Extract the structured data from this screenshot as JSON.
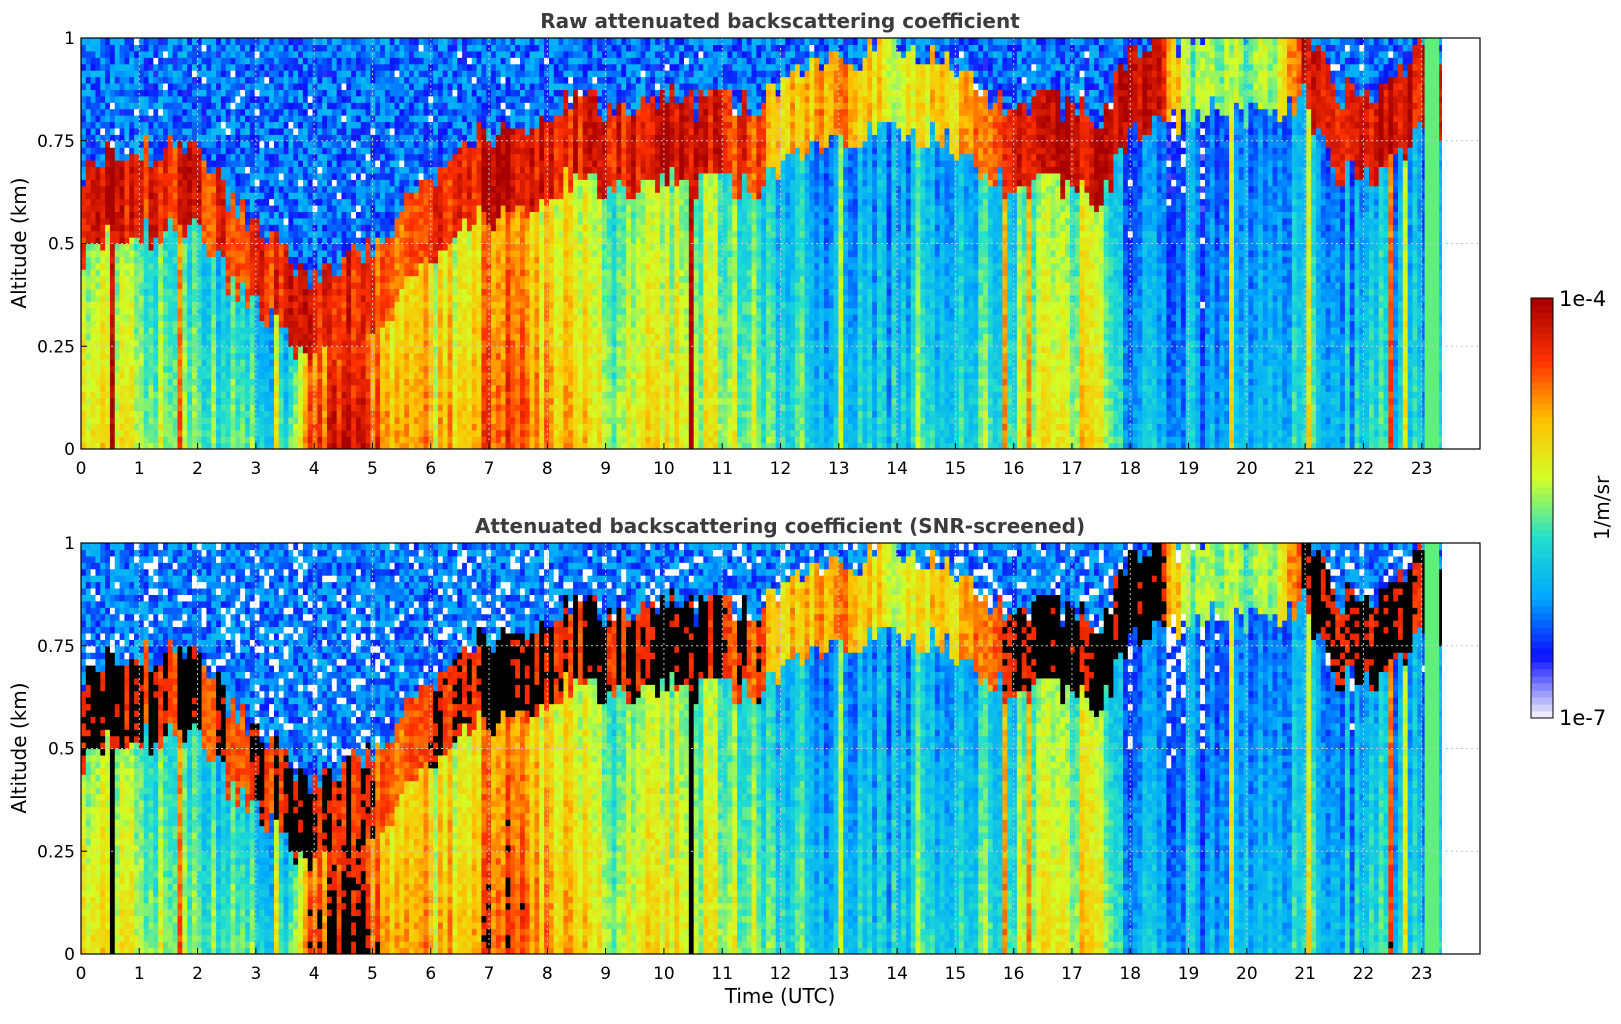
{
  "chart_data": [
    {
      "type": "heatmap",
      "title": "Raw attenuated backscattering coefficient",
      "xlabel": "",
      "ylabel": "Altitude (km)",
      "xlim": [
        0,
        24
      ],
      "ylim": [
        0,
        1
      ],
      "x_ticks": [
        0,
        1,
        2,
        3,
        4,
        5,
        6,
        7,
        8,
        9,
        10,
        11,
        12,
        13,
        14,
        15,
        16,
        17,
        18,
        19,
        20,
        21,
        22,
        23
      ],
      "y_ticks": [
        {
          "v": 0,
          "label": "0"
        },
        {
          "v": 0.25,
          "label": "0.25"
        },
        {
          "v": 0.5,
          "label": "0.5"
        },
        {
          "v": 0.75,
          "label": "0.75"
        },
        {
          "v": 1,
          "label": "1"
        }
      ],
      "grid": true,
      "data_end_hour": 23.3,
      "screened": false,
      "profile_hours": [
        0,
        0.5,
        1,
        1.5,
        2,
        2.5,
        3,
        3.5,
        4,
        4.5,
        5,
        5.5,
        6,
        6.5,
        7,
        7.5,
        8,
        8.5,
        9,
        9.5,
        10,
        10.5,
        11,
        11.5,
        12,
        12.5,
        13,
        13.5,
        14,
        14.5,
        15,
        15.5,
        16,
        16.5,
        17,
        17.5,
        18,
        18.5,
        19,
        19.5,
        20,
        20.5,
        21,
        21.5,
        22,
        22.5,
        23
      ],
      "layer_altitude_km": [
        0.55,
        0.6,
        0.6,
        0.62,
        0.62,
        0.5,
        0.42,
        0.35,
        0.3,
        0.32,
        0.38,
        0.45,
        0.55,
        0.6,
        0.65,
        0.65,
        0.7,
        0.75,
        0.7,
        0.72,
        0.75,
        0.72,
        0.72,
        0.72,
        0.75,
        0.8,
        0.82,
        0.85,
        0.85,
        0.85,
        0.82,
        0.75,
        0.7,
        0.72,
        0.72,
        0.7,
        0.85,
        0.87,
        0.88,
        0.9,
        0.9,
        0.9,
        0.95,
        0.75,
        0.75,
        0.78,
        0.85
      ],
      "layer_intensity": [
        0.95,
        0.95,
        0.9,
        0.9,
        0.9,
        0.85,
        0.85,
        0.9,
        0.9,
        0.9,
        0.85,
        0.8,
        0.85,
        0.85,
        0.95,
        0.95,
        0.9,
        0.9,
        0.9,
        0.9,
        0.95,
        0.95,
        0.9,
        0.85,
        0.7,
        0.7,
        0.8,
        0.7,
        0.6,
        0.65,
        0.7,
        0.8,
        0.9,
        0.95,
        0.95,
        0.95,
        0.95,
        0.95,
        0.5,
        0.5,
        0.5,
        0.5,
        0.95,
        0.95,
        0.95,
        0.95,
        0.95
      ],
      "near_surface_level": [
        0.55,
        0.5,
        0.45,
        0.45,
        0.4,
        0.35,
        0.35,
        0.3,
        0.75,
        0.8,
        0.75,
        0.6,
        0.55,
        0.6,
        0.7,
        0.7,
        0.6,
        0.55,
        0.45,
        0.45,
        0.55,
        0.5,
        0.45,
        0.4,
        0.35,
        0.3,
        0.25,
        0.25,
        0.25,
        0.25,
        0.3,
        0.35,
        0.4,
        0.45,
        0.45,
        0.5,
        0.2,
        0.2,
        0.2,
        0.2,
        0.2,
        0.2,
        0.3,
        0.25,
        0.25,
        0.25,
        0.25
      ],
      "colorscale": [
        "#ecebff",
        "#0a10ff",
        "#00a8ff",
        "#22e0cc",
        "#d2ff28",
        "#ffc000",
        "#ff3200",
        "#a80000"
      ]
    },
    {
      "type": "heatmap",
      "title": "Attenuated backscattering coefficient (SNR-screened)",
      "xlabel": "Time (UTC)",
      "ylabel": "Altitude (km)",
      "xlim": [
        0,
        24
      ],
      "ylim": [
        0,
        1
      ],
      "x_ticks": [
        0,
        1,
        2,
        3,
        4,
        5,
        6,
        7,
        8,
        9,
        10,
        11,
        12,
        13,
        14,
        15,
        16,
        17,
        18,
        19,
        20,
        21,
        22,
        23
      ],
      "y_ticks": [
        {
          "v": 0,
          "label": "0"
        },
        {
          "v": 0.25,
          "label": "0.25"
        },
        {
          "v": 0.5,
          "label": "0.5"
        },
        {
          "v": 0.75,
          "label": "0.75"
        },
        {
          "v": 1,
          "label": "1"
        }
      ],
      "grid": true,
      "data_end_hour": 23.3,
      "screened": true,
      "saturated_color": "#000000",
      "colorscale": [
        "#ecebff",
        "#0a10ff",
        "#00a8ff",
        "#22e0cc",
        "#d2ff28",
        "#ffc000",
        "#ff3200",
        "#a80000"
      ]
    }
  ],
  "colorbar": {
    "label": "1/m/sr",
    "max_label": "1e-4",
    "min_label": "1e-7",
    "scale": "log",
    "range": [
      1e-07,
      0.0001
    ]
  },
  "colors": {
    "title_gray": "#3c3c3c",
    "grid": "#c8c8c8"
  }
}
